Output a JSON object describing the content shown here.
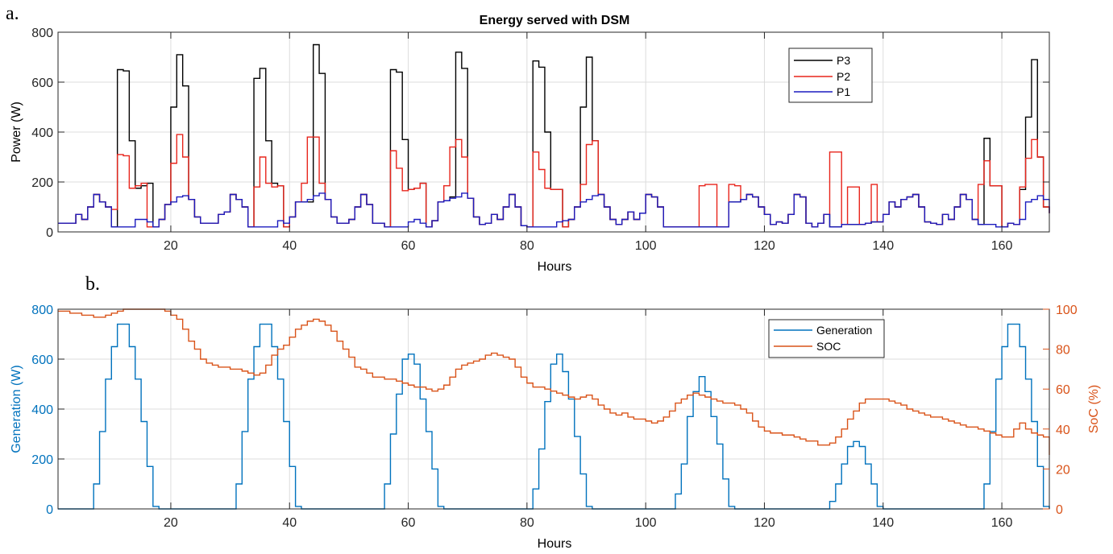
{
  "chart_data": [
    {
      "panel_label": "a.",
      "type": "line",
      "step": true,
      "title": "Energy served with DSM",
      "xlabel": "Hours",
      "ylabel": "Power (W)",
      "xlim": [
        1,
        168
      ],
      "ylim": [
        0,
        800
      ],
      "xticks": [
        20,
        40,
        60,
        80,
        100,
        120,
        140,
        160
      ],
      "yticks": [
        0,
        200,
        400,
        600,
        800
      ],
      "grid": true,
      "legend_position": "top-right-inner",
      "legend": [
        "P3",
        "P2",
        "P1"
      ],
      "series": [
        {
          "name": "P3",
          "color": "#000000",
          "values": [
            35,
            35,
            35,
            70,
            50,
            100,
            150,
            120,
            100,
            20,
            650,
            645,
            365,
            175,
            185,
            195,
            20,
            50,
            110,
            500,
            710,
            585,
            130,
            60,
            35,
            35,
            35,
            70,
            80,
            150,
            130,
            100,
            20,
            615,
            655,
            365,
            195,
            185,
            20,
            60,
            120,
            120,
            120,
            750,
            635,
            130,
            60,
            35,
            35,
            50,
            100,
            150,
            110,
            35,
            35,
            20,
            650,
            640,
            370,
            170,
            175,
            195,
            20,
            45,
            120,
            125,
            140,
            720,
            655,
            135,
            60,
            30,
            35,
            70,
            50,
            100,
            150,
            100,
            25,
            20,
            685,
            660,
            400,
            170,
            170,
            20,
            50,
            100,
            500,
            700,
            365,
            150,
            100,
            50,
            30,
            50,
            80,
            50,
            75,
            150,
            140,
            100,
            20,
            20,
            20,
            20,
            20,
            20,
            20,
            20,
            20,
            20,
            20,
            120,
            120,
            130,
            150,
            140,
            100,
            70,
            30,
            40,
            35,
            70,
            150,
            140,
            35,
            20,
            35,
            70,
            20,
            20,
            30,
            30,
            30,
            30,
            35,
            40,
            40,
            70,
            120,
            100,
            130,
            140,
            150,
            100,
            40,
            35,
            30,
            70,
            50,
            100,
            150,
            130,
            50,
            30,
            375,
            185,
            185,
            20,
            35,
            30,
            170,
            460,
            690,
            300,
            100,
            75
          ]
        },
        {
          "name": "P2",
          "color": "#e8251c",
          "values": [
            35,
            35,
            35,
            70,
            50,
            100,
            150,
            120,
            100,
            90,
            310,
            305,
            175,
            185,
            195,
            20,
            20,
            50,
            110,
            275,
            390,
            300,
            130,
            60,
            35,
            35,
            35,
            70,
            80,
            150,
            130,
            100,
            20,
            180,
            300,
            195,
            180,
            185,
            20,
            60,
            120,
            195,
            380,
            380,
            195,
            130,
            60,
            35,
            35,
            50,
            100,
            150,
            110,
            35,
            35,
            20,
            325,
            255,
            165,
            170,
            175,
            195,
            20,
            45,
            120,
            185,
            340,
            370,
            300,
            135,
            60,
            30,
            35,
            70,
            50,
            100,
            150,
            100,
            25,
            20,
            320,
            250,
            175,
            170,
            170,
            20,
            50,
            100,
            190,
            350,
            365,
            150,
            100,
            50,
            30,
            50,
            80,
            50,
            75,
            150,
            140,
            100,
            20,
            20,
            20,
            20,
            20,
            20,
            185,
            190,
            190,
            20,
            20,
            190,
            185,
            130,
            150,
            140,
            100,
            70,
            30,
            40,
            35,
            70,
            150,
            140,
            35,
            20,
            35,
            70,
            320,
            320,
            30,
            180,
            180,
            30,
            35,
            190,
            40,
            70,
            120,
            100,
            130,
            140,
            150,
            100,
            40,
            35,
            30,
            70,
            50,
            100,
            150,
            130,
            50,
            190,
            285,
            185,
            185,
            20,
            35,
            30,
            180,
            295,
            370,
            300,
            100,
            75
          ]
        },
        {
          "name": "P1",
          "color": "#1c1cbf",
          "values": [
            35,
            35,
            35,
            70,
            50,
            100,
            150,
            120,
            100,
            20,
            20,
            20,
            20,
            50,
            50,
            40,
            20,
            50,
            110,
            120,
            140,
            145,
            130,
            60,
            35,
            35,
            35,
            70,
            80,
            150,
            130,
            100,
            20,
            20,
            20,
            20,
            20,
            45,
            35,
            60,
            120,
            120,
            130,
            145,
            155,
            130,
            60,
            35,
            35,
            50,
            100,
            150,
            110,
            35,
            35,
            20,
            20,
            20,
            20,
            40,
            50,
            35,
            20,
            45,
            120,
            125,
            135,
            140,
            155,
            135,
            60,
            30,
            35,
            70,
            50,
            100,
            150,
            100,
            25,
            20,
            20,
            20,
            20,
            20,
            40,
            45,
            50,
            100,
            120,
            130,
            145,
            150,
            100,
            50,
            30,
            50,
            80,
            50,
            75,
            150,
            140,
            100,
            20,
            20,
            20,
            20,
            20,
            20,
            20,
            20,
            20,
            20,
            20,
            120,
            120,
            130,
            150,
            140,
            100,
            70,
            30,
            40,
            35,
            70,
            150,
            140,
            35,
            20,
            35,
            70,
            20,
            20,
            30,
            30,
            30,
            30,
            35,
            40,
            40,
            70,
            120,
            100,
            130,
            140,
            150,
            100,
            40,
            35,
            30,
            70,
            50,
            100,
            150,
            130,
            50,
            30,
            30,
            30,
            20,
            20,
            35,
            30,
            50,
            120,
            130,
            145,
            130,
            75
          ]
        }
      ]
    },
    {
      "panel_label": "b.",
      "type": "line",
      "step": true,
      "xlabel": "Hours",
      "ylabel": "Generation (W)",
      "ylabel_right": "SoC (%)",
      "xlim": [
        1,
        168
      ],
      "ylim": [
        0,
        800
      ],
      "ylim_right": [
        0,
        100
      ],
      "xticks": [
        20,
        40,
        60,
        80,
        100,
        120,
        140,
        160
      ],
      "yticks": [
        0,
        200,
        400,
        600,
        800
      ],
      "yticks_right": [
        0,
        20,
        40,
        60,
        80,
        100
      ],
      "grid": true,
      "legend_position": "top-right-inner",
      "legend": [
        "Generation",
        "SOC"
      ],
      "left_axis_color": "#0072bd",
      "right_axis_color": "#d95319",
      "series": [
        {
          "name": "Generation",
          "axis": "left",
          "color": "#0072bd",
          "values": [
            0,
            0,
            0,
            0,
            0,
            0,
            100,
            310,
            520,
            650,
            740,
            740,
            650,
            520,
            350,
            170,
            10,
            0,
            0,
            0,
            0,
            0,
            0,
            0,
            0,
            0,
            0,
            0,
            0,
            0,
            100,
            310,
            520,
            650,
            740,
            740,
            650,
            520,
            350,
            170,
            10,
            0,
            0,
            0,
            0,
            0,
            0,
            0,
            0,
            0,
            0,
            0,
            0,
            0,
            0,
            100,
            300,
            460,
            600,
            620,
            580,
            440,
            310,
            160,
            10,
            0,
            0,
            0,
            0,
            0,
            0,
            0,
            0,
            0,
            0,
            0,
            0,
            0,
            0,
            0,
            80,
            240,
            430,
            580,
            620,
            550,
            440,
            290,
            140,
            10,
            0,
            0,
            0,
            0,
            0,
            0,
            0,
            0,
            0,
            0,
            0,
            0,
            0,
            0,
            60,
            180,
            370,
            470,
            530,
            470,
            370,
            260,
            120,
            10,
            0,
            0,
            0,
            0,
            0,
            0,
            0,
            0,
            0,
            0,
            0,
            0,
            0,
            0,
            0,
            0,
            30,
            100,
            180,
            250,
            270,
            250,
            180,
            100,
            10,
            0,
            0,
            0,
            0,
            0,
            0,
            0,
            0,
            0,
            0,
            0,
            0,
            0,
            0,
            0,
            0,
            0,
            100,
            310,
            520,
            650,
            740,
            740,
            650,
            520,
            350,
            170,
            10,
            0,
            0,
            0,
            0,
            0,
            0,
            0
          ]
        },
        {
          "name": "SOC",
          "axis": "right",
          "color": "#d95319",
          "values": [
            99,
            99,
            98,
            98,
            97,
            97,
            96,
            96,
            97,
            98,
            99,
            100,
            100,
            100,
            100,
            100,
            100,
            100,
            99,
            97,
            95,
            90,
            84,
            80,
            75,
            73,
            72,
            71,
            71,
            70,
            70,
            69,
            68,
            67,
            68,
            72,
            77,
            80,
            82,
            86,
            90,
            92,
            94,
            95,
            94,
            92,
            89,
            84,
            80,
            76,
            71,
            70,
            68,
            66,
            66,
            65,
            65,
            64,
            63,
            62,
            61,
            61,
            60,
            59,
            60,
            62,
            66,
            70,
            72,
            73,
            74,
            75,
            77,
            78,
            77,
            76,
            75,
            71,
            66,
            63,
            61,
            61,
            60,
            59,
            58,
            57,
            56,
            55,
            56,
            57,
            55,
            52,
            50,
            48,
            47,
            48,
            46,
            45,
            45,
            44,
            43,
            44,
            46,
            49,
            53,
            55,
            57,
            58,
            57,
            56,
            55,
            54,
            53,
            53,
            52,
            50,
            48,
            44,
            41,
            39,
            38,
            38,
            37,
            37,
            36,
            35,
            34,
            34,
            32,
            32,
            33,
            36,
            40,
            45,
            49,
            53,
            55,
            55,
            55,
            55,
            54,
            53,
            52,
            50,
            49,
            48,
            47,
            46,
            46,
            45,
            44,
            43,
            42,
            41,
            41,
            40,
            39,
            38,
            37,
            36,
            36,
            40,
            43,
            40,
            38,
            37,
            36,
            35,
            34,
            33,
            33,
            32,
            31,
            31,
            30,
            30,
            30,
            30,
            28,
            27
          ]
        }
      ]
    }
  ]
}
